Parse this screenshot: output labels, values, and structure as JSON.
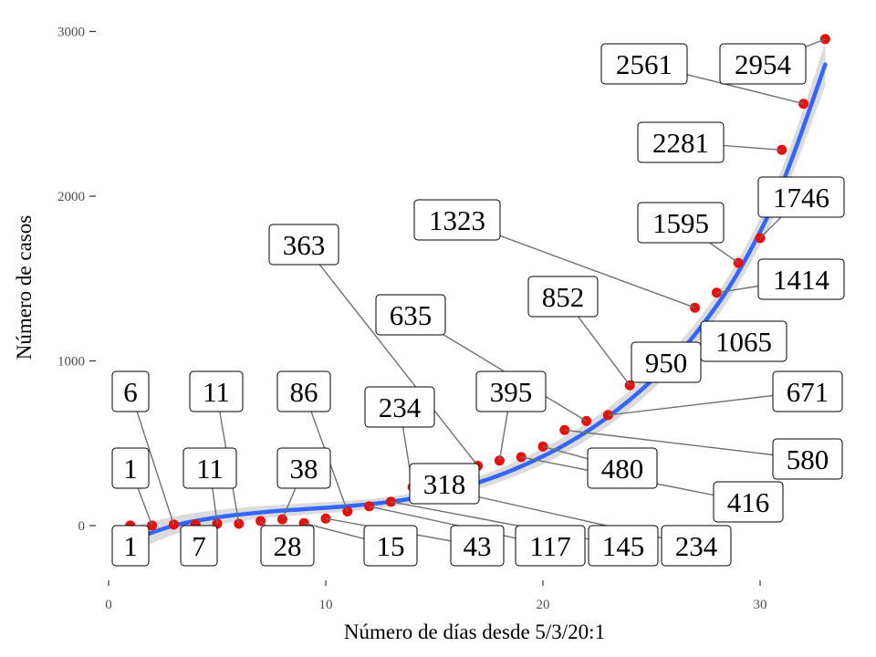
{
  "chart_data": {
    "type": "scatter",
    "title": "",
    "xlabel": "Número de días desde 5/3/20:1",
    "ylabel": "Número de casos",
    "xlim": [
      0,
      34
    ],
    "ylim": [
      -330,
      3150
    ],
    "xticks": [
      0,
      10,
      20,
      30
    ],
    "yticks": [
      0,
      1000,
      2000,
      3000
    ],
    "grid": false,
    "series": [
      {
        "x": [
          1,
          2,
          3,
          4,
          5,
          6,
          7,
          8,
          9,
          10,
          11,
          12,
          13,
          14,
          15,
          16,
          17,
          18,
          19,
          20,
          21,
          22,
          23,
          24,
          25,
          26,
          27,
          28,
          29,
          30,
          31,
          32,
          33
        ],
        "values": [
          1,
          1,
          6,
          7,
          11,
          11,
          28,
          38,
          15,
          43,
          86,
          117,
          145,
          234,
          234,
          318,
          363,
          395,
          416,
          480,
          580,
          635,
          671,
          852,
          950,
          1065,
          1323,
          1414,
          1595,
          1746,
          2281,
          2561,
          2954
        ],
        "color": "#e8100c"
      }
    ],
    "fit": {
      "color": "#3366ff",
      "band_color": "#bdbdbd",
      "x": [
        1,
        3,
        5,
        7,
        9,
        11,
        13,
        15,
        17,
        19,
        21,
        23,
        25,
        27,
        29,
        31,
        33
      ],
      "y": [
        -90,
        0,
        50,
        80,
        100,
        118,
        145,
        190,
        260,
        360,
        490,
        660,
        880,
        1160,
        1540,
        2070,
        2800
      ],
      "band_halfwidth": [
        80,
        55,
        45,
        38,
        35,
        32,
        30,
        32,
        38,
        45,
        50,
        55,
        60,
        65,
        75,
        95,
        130
      ]
    },
    "labels": [
      {
        "text": "1",
        "x": 1,
        "y": 1
      },
      {
        "text": "1",
        "x": 2,
        "y": 1
      },
      {
        "text": "6",
        "x": 3,
        "y": 6
      },
      {
        "text": "7",
        "x": 4,
        "y": 7
      },
      {
        "text": "11",
        "x": 5,
        "y": 11
      },
      {
        "text": "11",
        "x": 6,
        "y": 11
      },
      {
        "text": "28",
        "x": 7,
        "y": 28
      },
      {
        "text": "38",
        "x": 8,
        "y": 38
      },
      {
        "text": "15",
        "x": 9,
        "y": 15
      },
      {
        "text": "43",
        "x": 10,
        "y": 43
      },
      {
        "text": "86",
        "x": 11,
        "y": 86
      },
      {
        "text": "117",
        "x": 12,
        "y": 117
      },
      {
        "text": "145",
        "x": 13,
        "y": 145
      },
      {
        "text": "234",
        "x": 14,
        "y": 234
      },
      {
        "text": "234",
        "x": 15,
        "y": 234
      },
      {
        "text": "318",
        "x": 16,
        "y": 318
      },
      {
        "text": "363",
        "x": 17,
        "y": 363
      },
      {
        "text": "395",
        "x": 18,
        "y": 395
      },
      {
        "text": "416",
        "x": 19,
        "y": 416
      },
      {
        "text": "480",
        "x": 20,
        "y": 480
      },
      {
        "text": "580",
        "x": 21,
        "y": 580
      },
      {
        "text": "635",
        "x": 22,
        "y": 635
      },
      {
        "text": "671",
        "x": 23,
        "y": 671
      },
      {
        "text": "852",
        "x": 24,
        "y": 852
      },
      {
        "text": "950",
        "x": 25,
        "y": 950
      },
      {
        "text": "1065",
        "x": 26,
        "y": 1065
      },
      {
        "text": "1323",
        "x": 27,
        "y": 1323
      },
      {
        "text": "1414",
        "x": 28,
        "y": 1414
      },
      {
        "text": "1595",
        "x": 29,
        "y": 1595
      },
      {
        "text": "1746",
        "x": 30,
        "y": 1746
      },
      {
        "text": "2281",
        "x": 31,
        "y": 2281
      },
      {
        "text": "2561",
        "x": 32,
        "y": 2561
      },
      {
        "text": "2954",
        "x": 33,
        "y": 2954
      }
    ]
  }
}
